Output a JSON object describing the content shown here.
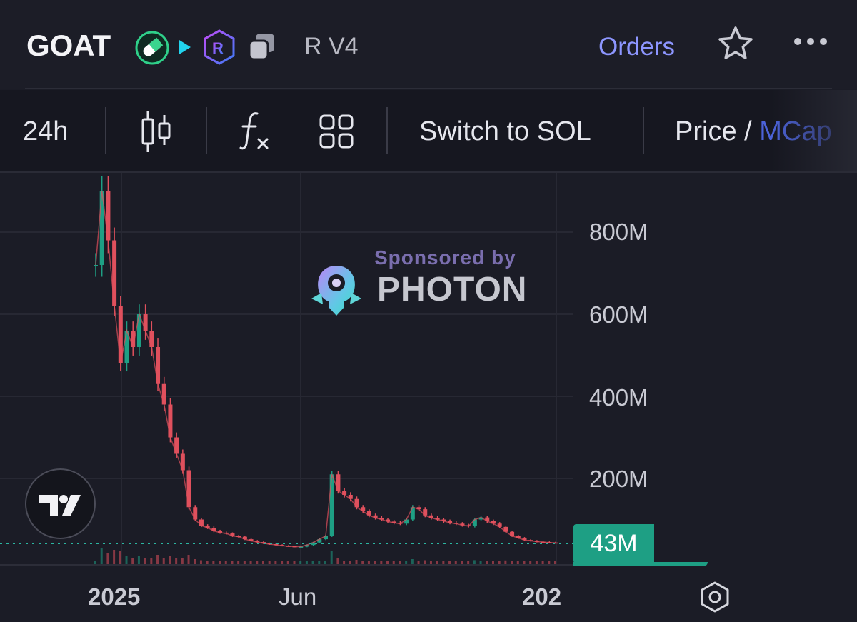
{
  "header": {
    "token_name": "GOAT",
    "venue": "R V4",
    "orders_label": "Orders",
    "icons": [
      "pill-icon",
      "play-icon",
      "raydium-icon",
      "copy-icon",
      "star-icon",
      "more-icon"
    ]
  },
  "toolbar": {
    "interval": "24h",
    "switch_label": "Switch to SOL",
    "price_label": "Price /",
    "mcap_label": "MCap",
    "icons": [
      "candlestick-icon",
      "function-icon",
      "layout-grid-icon"
    ]
  },
  "sponsor": {
    "small": "Sponsored by",
    "big": "PHOTON"
  },
  "chart": {
    "current_value_label": "43M",
    "y_ticks": [
      "800M",
      "600M",
      "400M",
      "200M"
    ],
    "x_ticks": [
      "2025",
      "Jun",
      "202"
    ]
  },
  "colors": {
    "up": "#1e9f84",
    "down": "#e0505d",
    "accent": "#8d96ff",
    "mcap": "#4b62d9"
  },
  "chart_data": {
    "type": "line",
    "title": "",
    "ylabel": "",
    "xlabel": "",
    "ylim": [
      0,
      950
    ],
    "x_ticks": [
      "2025",
      "Jun",
      "202"
    ],
    "y_ticks": [
      "200M",
      "400M",
      "600M",
      "800M"
    ],
    "current_value": "43M",
    "series": [
      {
        "values": [
          720,
          900,
          780,
          620,
          480,
          560,
          520,
          600,
          560,
          520,
          430,
          380,
          300,
          260,
          220,
          130,
          100,
          85,
          80,
          72,
          68,
          66,
          60,
          58,
          52,
          48,
          45,
          42,
          40,
          38,
          36,
          35,
          34,
          34,
          38,
          44,
          52,
          60,
          210,
          170,
          160,
          150,
          130,
          120,
          110,
          104,
          100,
          95,
          92,
          90,
          100,
          130,
          125,
          110,
          104,
          100,
          96,
          92,
          90,
          86,
          84,
          100,
          105,
          96,
          90,
          82,
          70,
          60,
          55,
          50,
          48,
          46,
          45,
          44,
          43
        ]
      }
    ]
  }
}
